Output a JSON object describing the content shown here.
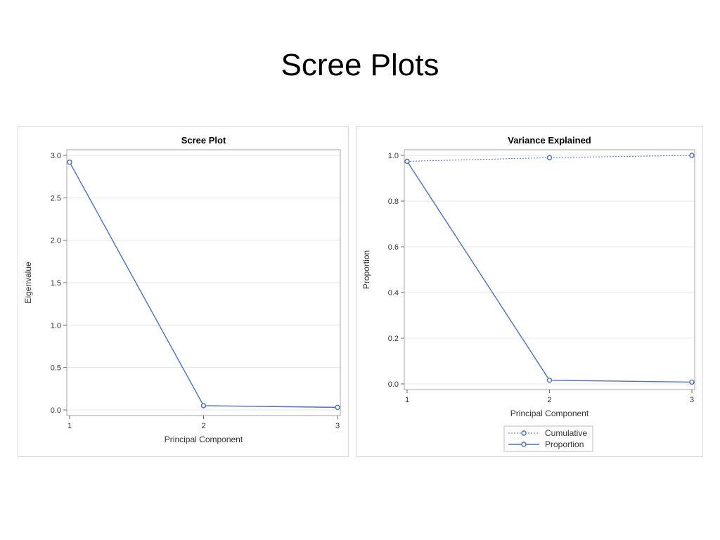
{
  "slide": {
    "title": "Scree Plots"
  },
  "chart_data": [
    {
      "type": "line",
      "title": "Scree Plot",
      "xlabel": "Principal Component",
      "ylabel": "Eigenvalue",
      "x": [
        1,
        2,
        3
      ],
      "x_ticks": [
        "1",
        "2",
        "3"
      ],
      "ylim": [
        0,
        3.0
      ],
      "y_ticks": [
        "0.0",
        "0.5",
        "1.0",
        "1.5",
        "2.0",
        "2.5",
        "3.0"
      ],
      "grid": true,
      "series": [
        {
          "values": [
            2.92,
            0.05,
            0.03
          ],
          "color": "#4a72b8",
          "style": "solid",
          "marker": "circle"
        }
      ]
    },
    {
      "type": "line",
      "title": "Variance Explained",
      "xlabel": "Principal Component",
      "ylabel": "Proportion",
      "x": [
        1,
        2,
        3
      ],
      "x_ticks": [
        "1",
        "2",
        "3"
      ],
      "ylim": [
        0,
        1.0
      ],
      "y_ticks": [
        "0.0",
        "0.2",
        "0.4",
        "0.6",
        "0.8",
        "1.0"
      ],
      "grid": true,
      "legend": "bottom",
      "series": [
        {
          "name": "Cumulative",
          "values": [
            0.974,
            0.99,
            1.0
          ],
          "color": "#4a72b8",
          "style": "dotted",
          "marker": "circle"
        },
        {
          "name": "Proportion",
          "values": [
            0.974,
            0.016,
            0.008
          ],
          "color": "#4a72b8",
          "style": "solid",
          "marker": "circle"
        }
      ]
    }
  ]
}
